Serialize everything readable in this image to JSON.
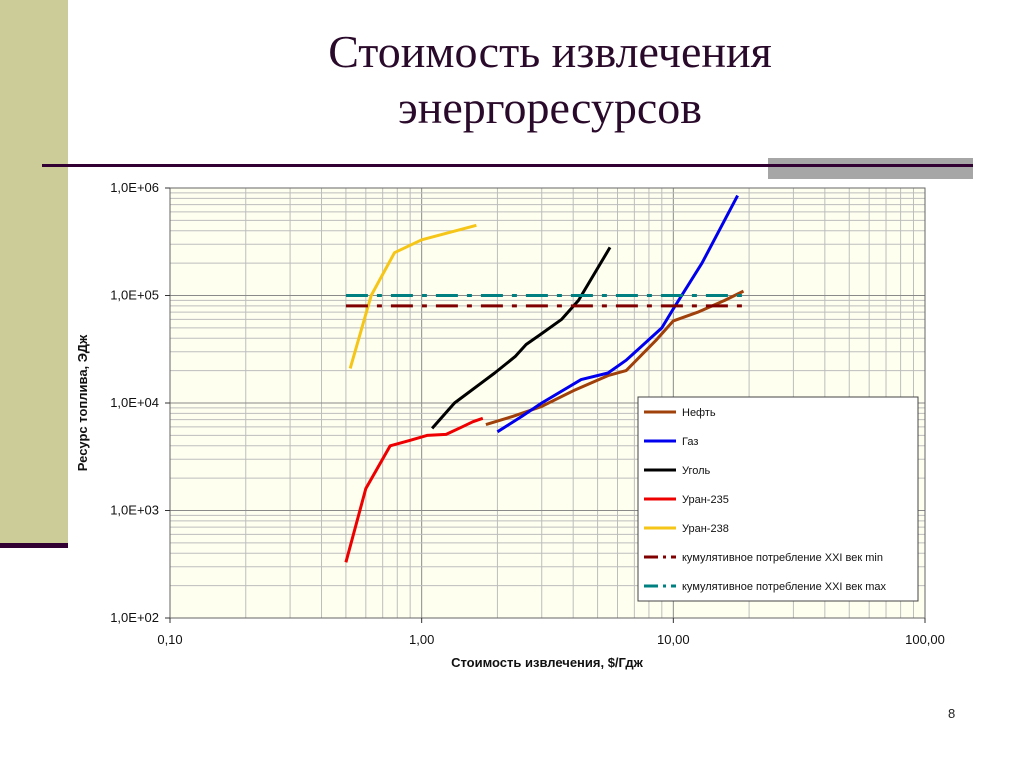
{
  "slide": {
    "title_line1": "Стоимость извлечения",
    "title_line2": "энергоресурсов",
    "page_number": "8"
  },
  "chart_data": {
    "type": "line",
    "xlabel": "Стоимость извлечения, $/Гдж",
    "ylabel": "Ресурс топлива, ЭДж",
    "x_scale": "log",
    "y_scale": "log",
    "xlim": [
      0.1,
      100
    ],
    "ylim": [
      100,
      1000000
    ],
    "x_ticks": [
      {
        "value": 0.1,
        "label": "0,10"
      },
      {
        "value": 1,
        "label": "1,00"
      },
      {
        "value": 10,
        "label": "10,00"
      },
      {
        "value": 100,
        "label": "100,00"
      }
    ],
    "y_ticks": [
      {
        "value": 100,
        "label": "1,0E+02"
      },
      {
        "value": 1000,
        "label": "1,0E+03"
      },
      {
        "value": 10000,
        "label": "1,0E+04"
      },
      {
        "value": 100000,
        "label": "1,0E+05"
      },
      {
        "value": 1000000,
        "label": "1,0E+06"
      }
    ],
    "grid": true,
    "plot_background": "#fffff0",
    "legend_position": "right",
    "series": [
      {
        "name": "Нефть",
        "color": "#a0400a",
        "style": "solid",
        "points": [
          [
            1.8,
            6300
          ],
          [
            2.3,
            7500
          ],
          [
            3.0,
            9300
          ],
          [
            4.0,
            13000
          ],
          [
            5.5,
            18000
          ],
          [
            6.5,
            20000
          ],
          [
            8.5,
            38000
          ],
          [
            10.0,
            58000
          ],
          [
            12.5,
            70000
          ],
          [
            16.0,
            90000
          ],
          [
            19.0,
            110000
          ]
        ]
      },
      {
        "name": "Газ",
        "color": "#0000ee",
        "style": "solid",
        "points": [
          [
            2.0,
            5400
          ],
          [
            2.5,
            7500
          ],
          [
            3.0,
            10000
          ],
          [
            4.3,
            16500
          ],
          [
            5.5,
            19000
          ],
          [
            6.5,
            25000
          ],
          [
            9.0,
            50000
          ],
          [
            10.0,
            75000
          ],
          [
            13.0,
            200000
          ],
          [
            18.0,
            850000
          ]
        ]
      },
      {
        "name": "Уголь",
        "color": "#000000",
        "style": "solid",
        "points": [
          [
            1.1,
            5800
          ],
          [
            1.35,
            10000
          ],
          [
            1.95,
            19000
          ],
          [
            2.35,
            27000
          ],
          [
            2.6,
            35000
          ],
          [
            2.95,
            43000
          ],
          [
            3.6,
            60000
          ],
          [
            4.2,
            90000
          ],
          [
            5.6,
            280000
          ]
        ]
      },
      {
        "name": "Уран-235",
        "color": "#ee0000",
        "style": "solid",
        "points": [
          [
            0.5,
            330
          ],
          [
            0.6,
            1600
          ],
          [
            0.75,
            4000
          ],
          [
            0.9,
            4500
          ],
          [
            1.05,
            5000
          ],
          [
            1.25,
            5100
          ],
          [
            1.45,
            6000
          ],
          [
            1.6,
            6700
          ],
          [
            1.75,
            7200
          ]
        ]
      },
      {
        "name": "Уран-238",
        "color": "#f5c518",
        "style": "solid",
        "points": [
          [
            0.52,
            21000
          ],
          [
            0.63,
            100000
          ],
          [
            0.78,
            250000
          ],
          [
            1.0,
            330000
          ],
          [
            1.65,
            450000
          ]
        ]
      },
      {
        "name": "кумулятивное потребление XXI век min",
        "color": "#800000",
        "style": "dashdot",
        "points": [
          [
            0.5,
            80000
          ],
          [
            19.0,
            80000
          ]
        ]
      },
      {
        "name": "кумулятивное потребление XXI век max",
        "color": "#008080",
        "style": "dashdot",
        "points": [
          [
            0.5,
            100000
          ],
          [
            19.0,
            100000
          ]
        ]
      }
    ]
  }
}
